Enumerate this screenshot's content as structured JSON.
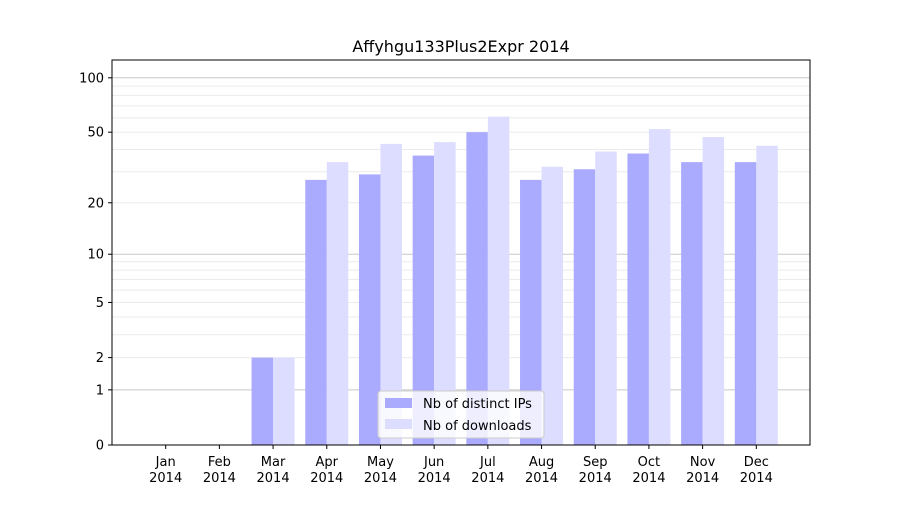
{
  "chart_data": {
    "type": "bar",
    "title": "Affyhgu133Plus2Expr 2014",
    "xlabel": "",
    "ylabel": "",
    "yscale": "log10(1+y)",
    "ylim": [
      0,
      120
    ],
    "grid": true,
    "legend_position": "bottom-center",
    "categories": [
      "Jan\n2014",
      "Feb\n2014",
      "Mar\n2014",
      "Apr\n2014",
      "May\n2014",
      "Jun\n2014",
      "Jul\n2014",
      "Aug\n2014",
      "Sep\n2014",
      "Oct\n2014",
      "Nov\n2014",
      "Dec\n2014"
    ],
    "yticks": [
      0,
      1,
      2,
      5,
      10,
      20,
      50,
      100
    ],
    "series": [
      {
        "name": "Nb of distinct IPs",
        "color": "#aaaaff",
        "values": [
          0,
          0,
          2,
          27,
          29,
          37,
          50,
          27,
          31,
          38,
          34,
          34
        ]
      },
      {
        "name": "Nb of downloads",
        "color": "#ddddff",
        "values": [
          0,
          0,
          2,
          34,
          43,
          44,
          61,
          32,
          39,
          52,
          47,
          42
        ]
      }
    ]
  }
}
